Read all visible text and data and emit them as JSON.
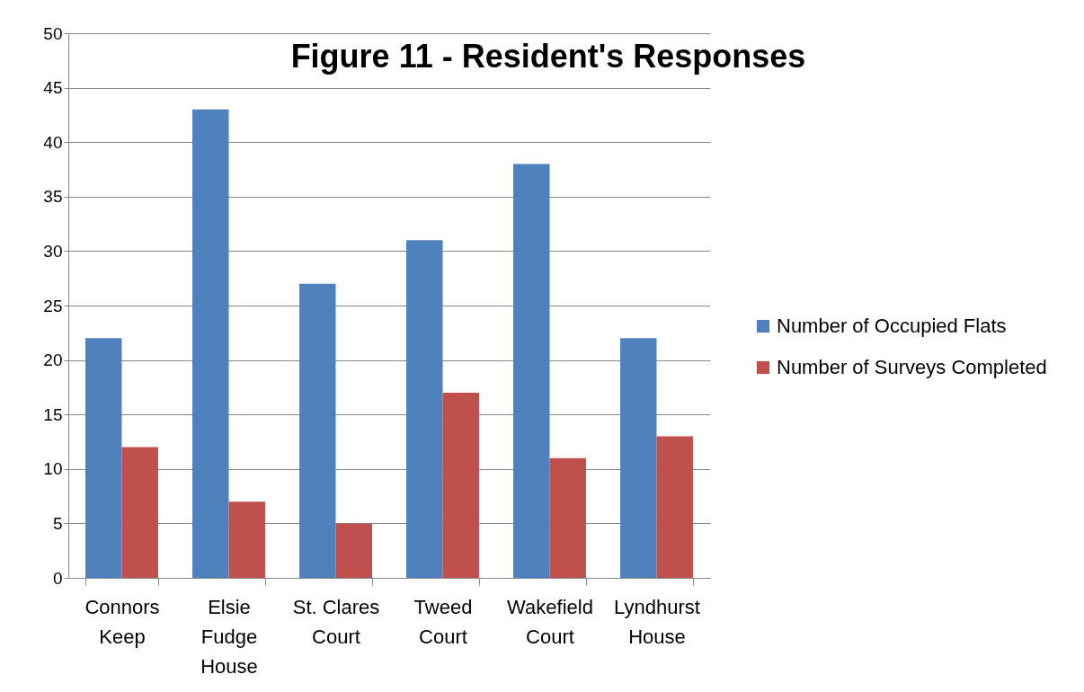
{
  "chart_data": {
    "type": "bar",
    "title": "Figure 11 - Resident's Responses",
    "categories": [
      "Connors Keep",
      "Elsie Fudge House",
      "St. Clares Court",
      "Tweed Court",
      "Wakefield Court",
      "Lyndhurst House"
    ],
    "series": [
      {
        "name": "Number of Occupied Flats",
        "color": "#4f81bd",
        "values": [
          22,
          43,
          27,
          31,
          38,
          22
        ]
      },
      {
        "name": "Number of Surveys Completed",
        "color": "#c0504d",
        "values": [
          12,
          7,
          5,
          17,
          11,
          13
        ]
      }
    ],
    "ylim": [
      0,
      50
    ],
    "yticks": [
      0,
      5,
      10,
      15,
      20,
      25,
      30,
      35,
      40,
      45,
      50
    ],
    "grid": "y",
    "legend": "right"
  }
}
